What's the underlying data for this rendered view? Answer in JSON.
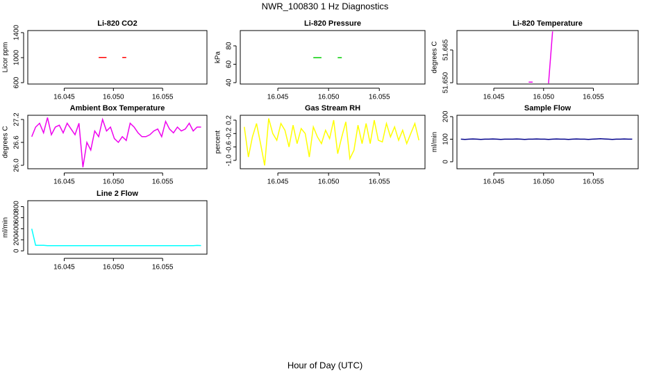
{
  "title": "NWR_100830  1 Hz Diagnostics",
  "xlabel": "Hour of Day (UTC)",
  "chart_data": [
    {
      "type": "line",
      "title": "Li-820 CO2",
      "ylabel": "Licor ppm",
      "color": "#ff0000",
      "x": [
        16.0417,
        16.0421,
        16.0425,
        16.0429,
        16.0433,
        16.0437,
        16.0441,
        16.0445,
        16.0449,
        16.0453,
        16.0457,
        16.0461,
        16.0465,
        16.0469,
        16.0473,
        16.0477,
        16.0481,
        16.0485,
        16.0489,
        16.0493,
        16.0497,
        16.0501,
        16.0505,
        16.0509,
        16.0513,
        16.0517,
        16.0521,
        16.0525,
        16.0529,
        16.0533,
        16.0537,
        16.0541,
        16.0545,
        16.0549,
        16.0553,
        16.0557,
        16.0561,
        16.0565,
        16.0569,
        16.0573,
        16.0577,
        16.0581,
        16.0585,
        16.0589
      ],
      "values": [
        null,
        null,
        null,
        null,
        null,
        null,
        null,
        null,
        null,
        null,
        null,
        null,
        null,
        null,
        null,
        null,
        null,
        1003,
        1003,
        1003,
        null,
        null,
        null,
        1003,
        1003,
        null,
        null,
        null,
        null,
        null,
        null,
        null,
        null,
        null,
        null,
        null,
        null,
        null,
        null,
        null,
        null,
        null,
        null,
        null
      ],
      "xlim": [
        16.0413,
        16.0595
      ],
      "xticks": [
        16.045,
        {
          "value": 16.05,
          "label": "16.050"
        },
        16.055
      ],
      "ylim": [
        578,
        1433
      ],
      "yticks": [
        600,
        1000,
        1400
      ]
    },
    {
      "type": "line",
      "title": "Li-820 Pressure",
      "ylabel": "kPa",
      "color": "#00cd00",
      "x": [
        16.0417,
        16.0421,
        16.0425,
        16.0429,
        16.0433,
        16.0437,
        16.0441,
        16.0445,
        16.0449,
        16.0453,
        16.0457,
        16.0461,
        16.0465,
        16.0469,
        16.0473,
        16.0477,
        16.0481,
        16.0485,
        16.0489,
        16.0493,
        16.0497,
        16.0501,
        16.0505,
        16.0509,
        16.0513,
        16.0517,
        16.0521,
        16.0525,
        16.0529,
        16.0533,
        16.0537,
        16.0541,
        16.0545,
        16.0549,
        16.0553,
        16.0557,
        16.0561,
        16.0565,
        16.0569,
        16.0573,
        16.0577,
        16.0581,
        16.0585,
        16.0589
      ],
      "values": [
        null,
        null,
        null,
        null,
        null,
        null,
        null,
        null,
        null,
        null,
        null,
        null,
        null,
        null,
        null,
        null,
        null,
        67.2,
        67.2,
        67.2,
        null,
        null,
        null,
        67.2,
        67.2,
        null,
        null,
        null,
        null,
        null,
        null,
        null,
        null,
        null,
        null,
        null,
        null,
        null,
        null,
        null,
        null,
        null,
        null,
        null
      ],
      "xlim": [
        16.0413,
        16.0595
      ],
      "xticks": [
        16.045,
        {
          "value": 16.05,
          "label": "16.050"
        },
        16.055
      ],
      "ylim": [
        38.5,
        96.6
      ],
      "yticks": [
        40,
        60,
        80
      ]
    },
    {
      "type": "line",
      "title": "Li-820 Temperature",
      "ylabel": "degrees C",
      "color": "#ee00ee",
      "x": [
        16.0417,
        16.0421,
        16.0425,
        16.0429,
        16.0433,
        16.0437,
        16.0441,
        16.0445,
        16.0449,
        16.0453,
        16.0457,
        16.0461,
        16.0465,
        16.0469,
        16.0473,
        16.0477,
        16.0481,
        16.0485,
        16.0489,
        16.0493,
        16.0497,
        16.0501,
        16.0505,
        16.0509,
        16.0513,
        16.0517,
        16.0521,
        16.0525,
        16.0529,
        16.0533,
        16.0537,
        16.0541,
        16.0545,
        16.0549,
        16.0553,
        16.0557,
        16.0561,
        16.0565,
        16.0569,
        16.0573,
        16.0577,
        16.0581,
        16.0585,
        16.0589
      ],
      "values": [
        null,
        null,
        null,
        null,
        null,
        null,
        null,
        null,
        null,
        null,
        null,
        null,
        null,
        null,
        null,
        null,
        null,
        51.6503,
        51.6503,
        null,
        null,
        null,
        51.6497,
        51.6735,
        null,
        null,
        null,
        null,
        null,
        null,
        null,
        null,
        null,
        null,
        null,
        null,
        null,
        null,
        null,
        null,
        null,
        null,
        null,
        null
      ],
      "xlim": [
        16.0413,
        16.0595
      ],
      "xticks": [
        16.045,
        {
          "value": 16.05,
          "label": "16.050"
        },
        16.055
      ],
      "ylim": [
        51.6494,
        51.6739
      ],
      "yticks": [
        {
          "value": 51.65,
          "label": "51.650"
        },
        51.665
      ]
    },
    {
      "type": "line",
      "title": "Ambient Box Temperature",
      "ylabel": "degrees C",
      "color": "#ee00ee",
      "x": [
        16.0417,
        16.0421,
        16.0425,
        16.0429,
        16.0433,
        16.0437,
        16.0441,
        16.0445,
        16.0449,
        16.0453,
        16.0457,
        16.0461,
        16.0465,
        16.0469,
        16.0473,
        16.0477,
        16.0481,
        16.0485,
        16.0489,
        16.0493,
        16.0497,
        16.0501,
        16.0505,
        16.0509,
        16.0513,
        16.0517,
        16.0521,
        16.0525,
        16.0529,
        16.0533,
        16.0537,
        16.0541,
        16.0545,
        16.0549,
        16.0553,
        16.0557,
        16.0561,
        16.0565,
        16.0569,
        16.0573,
        16.0577,
        16.0581,
        16.0585,
        16.0589
      ],
      "values": [
        26.75,
        27.0,
        27.1,
        26.85,
        27.25,
        26.8,
        27.0,
        27.05,
        26.85,
        27.1,
        26.95,
        26.8,
        27.1,
        25.95,
        26.6,
        26.4,
        26.9,
        26.75,
        27.2,
        26.9,
        27.0,
        26.7,
        26.6,
        26.75,
        26.65,
        27.1,
        27.0,
        26.85,
        26.75,
        26.75,
        26.8,
        26.9,
        26.95,
        26.75,
        27.15,
        26.95,
        26.85,
        27.0,
        26.9,
        26.95,
        27.1,
        26.9,
        27.0,
        27.0
      ],
      "xlim": [
        16.0413,
        16.0595
      ],
      "xticks": [
        16.045,
        {
          "value": 16.05,
          "label": "16.050"
        },
        16.055
      ],
      "ylim": [
        25.91,
        27.31
      ],
      "yticks": [
        {
          "value": 26,
          "label": "26.0"
        },
        26.6,
        27.2
      ]
    },
    {
      "type": "line",
      "title": "Gas Stream RH",
      "ylabel": "percent",
      "color": "#ffff00",
      "x": [
        16.0417,
        16.0421,
        16.0425,
        16.0429,
        16.0433,
        16.0437,
        16.0441,
        16.0445,
        16.0449,
        16.0453,
        16.0457,
        16.0461,
        16.0465,
        16.0469,
        16.0473,
        16.0477,
        16.0481,
        16.0485,
        16.0489,
        16.0493,
        16.0497,
        16.0501,
        16.0505,
        16.0509,
        16.0513,
        16.0517,
        16.0521,
        16.0525,
        16.0529,
        16.0533,
        16.0537,
        16.0541,
        16.0545,
        16.0549,
        16.0553,
        16.0557,
        16.0561,
        16.0565,
        16.0569,
        16.0573,
        16.0577,
        16.0581,
        16.0585,
        16.0589
      ],
      "values": [
        0.0,
        -0.9,
        -0.3,
        0.1,
        -0.5,
        -1.15,
        0.25,
        -0.2,
        -0.4,
        0.1,
        -0.1,
        -0.6,
        0.05,
        -0.5,
        -0.05,
        -0.2,
        -0.9,
        0.0,
        -0.3,
        -0.5,
        -0.1,
        -0.35,
        0.2,
        -0.8,
        -0.3,
        0.15,
        -0.95,
        -0.7,
        0.05,
        -0.5,
        0.1,
        -0.5,
        0.2,
        -0.4,
        -0.45,
        0.1,
        -0.3,
        0.0,
        -0.4,
        -0.1,
        -0.5,
        -0.2,
        0.1,
        -0.4
      ],
      "xlim": [
        16.0413,
        16.0595
      ],
      "xticks": [
        16.045,
        {
          "value": 16.05,
          "label": "16.050"
        },
        16.055
      ],
      "ylim": [
        -1.25,
        0.345
      ],
      "yticks": [
        {
          "value": -1,
          "label": "-1.0"
        },
        -0.6,
        -0.2,
        0.2
      ]
    },
    {
      "type": "line",
      "title": "Sample Flow",
      "ylabel": "ml/min",
      "color": "#00008b",
      "x": [
        16.0417,
        16.0421,
        16.0425,
        16.0429,
        16.0433,
        16.0437,
        16.0441,
        16.0445,
        16.0449,
        16.0453,
        16.0457,
        16.0461,
        16.0465,
        16.0469,
        16.0473,
        16.0477,
        16.0481,
        16.0485,
        16.0489,
        16.0493,
        16.0497,
        16.0501,
        16.0505,
        16.0509,
        16.0513,
        16.0517,
        16.0521,
        16.0525,
        16.0529,
        16.0533,
        16.0537,
        16.0541,
        16.0545,
        16.0549,
        16.0553,
        16.0557,
        16.0561,
        16.0565,
        16.0569,
        16.0573,
        16.0577,
        16.0581,
        16.0585,
        16.0589
      ],
      "values": [
        100,
        99,
        100,
        101,
        100,
        99,
        100,
        100,
        101,
        100,
        99,
        100,
        100,
        100,
        101,
        100,
        99,
        100,
        100,
        101,
        100,
        100,
        99,
        100,
        101,
        100,
        100,
        99,
        100,
        101,
        100,
        100,
        99,
        100,
        101,
        102,
        101,
        100,
        99,
        100,
        100,
        101,
        100,
        100
      ],
      "xlim": [
        16.0413,
        16.0595
      ],
      "xticks": [
        16.045,
        {
          "value": 16.05,
          "label": "16.050"
        },
        16.055
      ],
      "ylim": [
        -31,
        206
      ],
      "yticks": [
        0,
        100,
        200
      ]
    },
    {
      "type": "line",
      "title": "Line 2 Flow",
      "ylabel": "ml/min",
      "color": "#00ffff",
      "x": [
        16.0417,
        16.0421,
        16.0425,
        16.0429,
        16.0433,
        16.0437,
        16.0441,
        16.0445,
        16.0449,
        16.0453,
        16.0457,
        16.0461,
        16.0465,
        16.0469,
        16.0473,
        16.0477,
        16.0481,
        16.0485,
        16.0489,
        16.0493,
        16.0497,
        16.0501,
        16.0505,
        16.0509,
        16.0513,
        16.0517,
        16.0521,
        16.0525,
        16.0529,
        16.0533,
        16.0537,
        16.0541,
        16.0545,
        16.0549,
        16.0553,
        16.0557,
        16.0561,
        16.0565,
        16.0569,
        16.0573,
        16.0577,
        16.0581,
        16.0585,
        16.0589
      ],
      "values": [
        400,
        100,
        100,
        100,
        93,
        93,
        93,
        93,
        93,
        93,
        93,
        93,
        93,
        93,
        93,
        93,
        93,
        93,
        93,
        93,
        93,
        93,
        93,
        93,
        93,
        93,
        93,
        93,
        93,
        93,
        93,
        93,
        93,
        93,
        93,
        93,
        93,
        93,
        93,
        93,
        93,
        93,
        98,
        96
      ],
      "xlim": [
        16.0413,
        16.0595
      ],
      "xticks": [
        16.045,
        {
          "value": 16.05,
          "label": "16.050"
        },
        16.055
      ],
      "ylim": [
        -60,
        907
      ],
      "yticks": [
        0,
        200,
        400,
        600,
        800
      ]
    }
  ]
}
